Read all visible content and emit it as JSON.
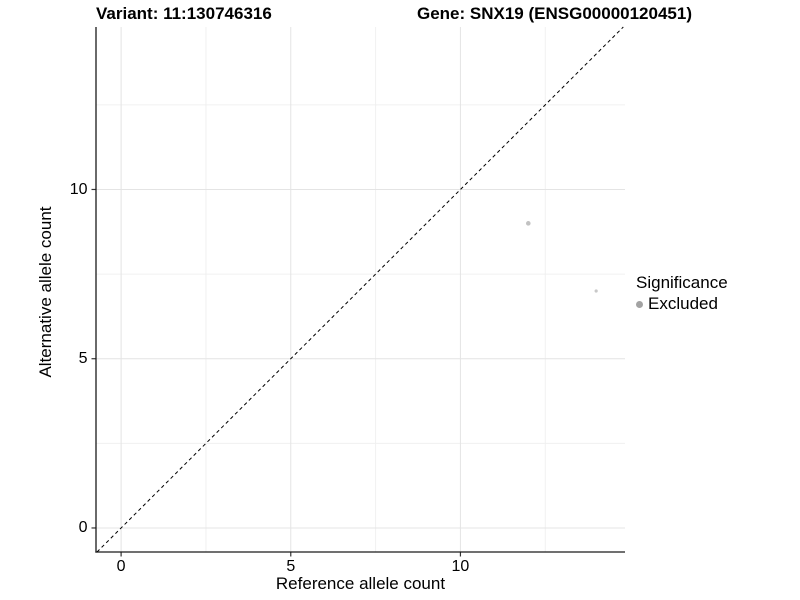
{
  "chart_data": {
    "type": "scatter",
    "title_left": "Variant: 11:130746316",
    "title_right": "Gene: SNX19 (ENSG00000120451)",
    "xlabel": "Reference allele count",
    "ylabel": "Alternative allele count",
    "xlim": [
      -0.74,
      14.85
    ],
    "ylim": [
      -0.71,
      14.8
    ],
    "x_major_ticks": [
      0,
      5,
      10
    ],
    "y_major_ticks": [
      0,
      5,
      10
    ],
    "x_minor_gridlines": [
      2.5,
      7.5,
      12.5
    ],
    "y_minor_gridlines": [
      2.5,
      7.5,
      12.5
    ],
    "grid": true,
    "identity_line": {
      "style": "dashed",
      "from": [
        -0.71,
        -0.71
      ],
      "to": [
        14.8,
        14.8
      ]
    },
    "points": [
      {
        "x": 12,
        "y": 9,
        "radius": 2.3,
        "color": "#c2c2c2",
        "significance": "Excluded"
      },
      {
        "x": 14,
        "y": 7,
        "radius": 1.6,
        "color": "#c8c8c8",
        "significance": "Excluded"
      }
    ],
    "legend": {
      "title": "Significance",
      "position": "right",
      "items": [
        {
          "label": "Excluded",
          "color": "#a3a3a3"
        }
      ]
    }
  },
  "colors": {
    "background": "#ffffff",
    "axis_line": "#1a1a1a",
    "tick_mark": "#333333",
    "grid_major": "#e4e4e4",
    "grid_minor": "#f0f0f0",
    "identity_line": "#000000",
    "text": "#000000"
  }
}
